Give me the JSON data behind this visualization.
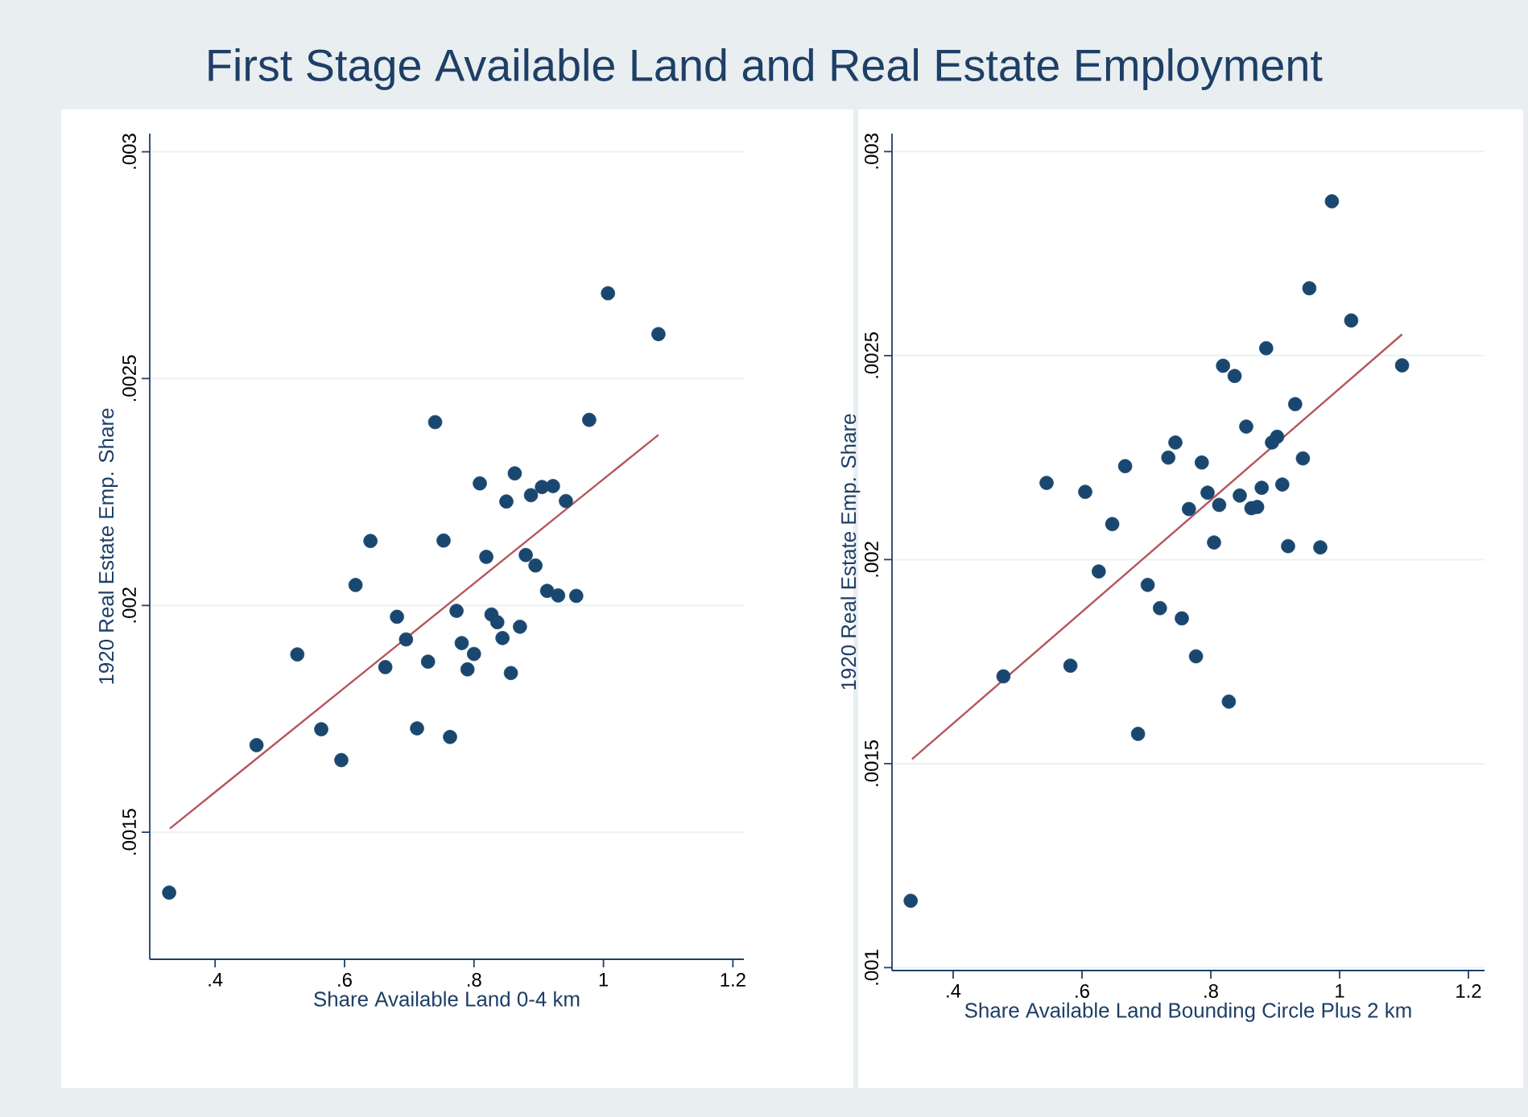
{
  "chart_data": [
    {
      "type": "scatter",
      "title": "First Stage Available Land and Real Estate Employment",
      "xlabel": "Share Available Land 0-4 km",
      "ylabel": "1920 Real Estate Emp. Share",
      "xlim": [
        0.299,
        1.217
      ],
      "ylim": [
        0.00122,
        0.00304
      ],
      "xticks": [
        {
          "value": 0.4,
          "label": ".4"
        },
        {
          "value": 0.6,
          "label": ".6"
        },
        {
          "value": 0.8,
          "label": ".8"
        },
        {
          "value": 1,
          "label": "1"
        },
        {
          "value": 1.2,
          "label": "1.2"
        }
      ],
      "yticks": [
        {
          "value": 0.0015,
          "label": ".0015"
        },
        {
          "value": 0.002,
          "label": ".002"
        },
        {
          "value": 0.0025,
          "label": ".0025"
        },
        {
          "value": 0.003,
          "label": ".003"
        }
      ],
      "grid": "y",
      "marker": "circle",
      "series": [
        {
          "color": "#1a476f",
          "x": [
            0.329,
            0.464,
            0.527,
            0.564,
            0.595,
            0.617,
            0.64,
            0.663,
            0.681,
            0.695,
            0.712,
            0.729,
            0.74,
            0.753,
            0.763,
            0.773,
            0.781,
            0.79,
            0.8,
            0.809,
            0.819,
            0.827,
            0.836,
            0.844,
            0.85,
            0.857,
            0.863,
            0.871,
            0.88,
            0.888,
            0.895,
            0.905,
            0.913,
            0.922,
            0.93,
            0.942,
            0.958,
            0.978,
            1.007,
            1.085
          ],
          "values": [
            0.001367,
            0.001692,
            0.001892,
            0.001727,
            0.001659,
            0.002045,
            0.002142,
            0.001864,
            0.001975,
            0.001925,
            0.001729,
            0.001876,
            0.002404,
            0.002143,
            0.00171,
            0.001988,
            0.001917,
            0.001859,
            0.001893,
            0.002269,
            0.002107,
            0.00198,
            0.001963,
            0.001928,
            0.002229,
            0.001851,
            0.002291,
            0.001953,
            0.002111,
            0.002243,
            0.002088,
            0.002261,
            0.002032,
            0.002263,
            0.002022,
            0.00223,
            0.002021,
            0.002409,
            0.002688,
            0.002598
          ]
        },
        {
          "type": "line",
          "color": "#b5575c",
          "marker": "none",
          "x": [
            0.33,
            1.085
          ],
          "values": [
            0.001508,
            0.002376
          ]
        }
      ]
    },
    {
      "type": "scatter",
      "xlabel": "Share Available Land Bounding Circle Plus 2 km",
      "ylabel": "1920 Real Estate Emp. Share",
      "xlim": [
        0.305,
        1.225
      ],
      "ylim": [
        0.000993,
        0.003044
      ],
      "xticks": [
        {
          "value": 0.4,
          "label": ".4"
        },
        {
          "value": 0.6,
          "label": ".6"
        },
        {
          "value": 0.8,
          "label": ".8"
        },
        {
          "value": 1,
          "label": "1"
        },
        {
          "value": 1.2,
          "label": "1.2"
        }
      ],
      "yticks": [
        {
          "value": 0.001,
          "label": ".001"
        },
        {
          "value": 0.0015,
          "label": ".0015"
        },
        {
          "value": 0.002,
          "label": ".002"
        },
        {
          "value": 0.0025,
          "label": ".0025"
        },
        {
          "value": 0.003,
          "label": ".003"
        }
      ],
      "grid": "y",
      "marker": "circle",
      "series": [
        {
          "color": "#1a476f",
          "x": [
            0.334,
            0.478,
            0.545,
            0.582,
            0.605,
            0.626,
            0.647,
            0.667,
            0.687,
            0.702,
            0.721,
            0.734,
            0.745,
            0.755,
            0.766,
            0.777,
            0.786,
            0.795,
            0.805,
            0.813,
            0.819,
            0.828,
            0.837,
            0.845,
            0.855,
            0.863,
            0.872,
            0.879,
            0.886,
            0.895,
            0.903,
            0.911,
            0.92,
            0.931,
            0.943,
            0.953,
            0.97,
            0.988,
            1.018,
            1.097
          ],
          "values": [
            0.001164,
            0.001714,
            0.002188,
            0.00174,
            0.002166,
            0.001971,
            0.002087,
            0.002229,
            0.001573,
            0.001938,
            0.001881,
            0.00225,
            0.002287,
            0.001856,
            0.002124,
            0.001763,
            0.002238,
            0.002164,
            0.002042,
            0.002134,
            0.002475,
            0.001652,
            0.00245,
            0.002157,
            0.002326,
            0.002126,
            0.002129,
            0.002176,
            0.002518,
            0.002287,
            0.002301,
            0.002184,
            0.002033,
            0.002381,
            0.002248,
            0.002665,
            0.00203,
            0.002878,
            0.002586,
            0.002476
          ]
        },
        {
          "type": "line",
          "color": "#b5575c",
          "marker": "none",
          "x": [
            0.336,
            1.097
          ],
          "values": [
            0.001511,
            0.002552
          ]
        }
      ]
    }
  ]
}
